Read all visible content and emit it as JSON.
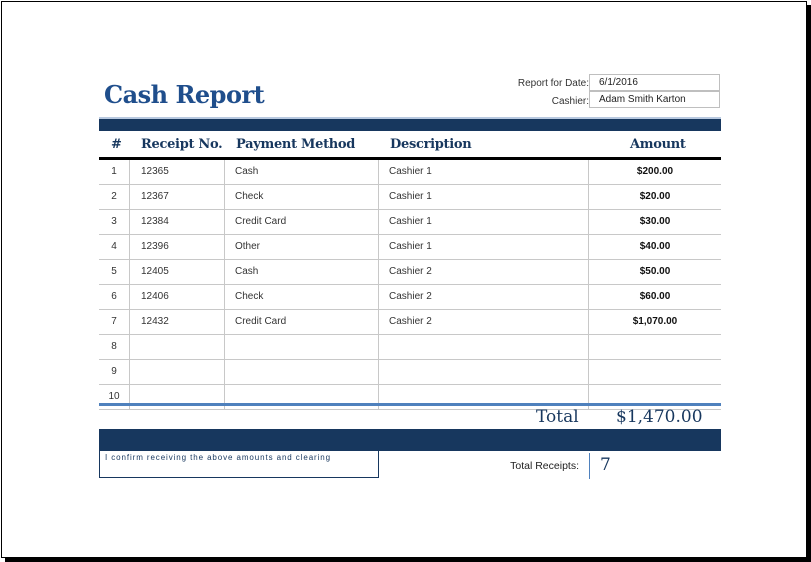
{
  "report": {
    "title": "Cash Report",
    "date_label": "Report for Date:",
    "date_value": "6/1/2016",
    "cashier_label": "Cashier:",
    "cashier_value": "Adam Smith Karton"
  },
  "table": {
    "columns": [
      "#",
      "Receipt No.",
      "Payment Method",
      "Description",
      "Amount"
    ],
    "rows": [
      {
        "num": "1",
        "receipt": "12365",
        "method": "Cash",
        "description": "Cashier 1",
        "amount": "$200.00"
      },
      {
        "num": "2",
        "receipt": "12367",
        "method": "Check",
        "description": "Cashier 1",
        "amount": "$20.00"
      },
      {
        "num": "3",
        "receipt": "12384",
        "method": "Credit Card",
        "description": "Cashier 1",
        "amount": "$30.00"
      },
      {
        "num": "4",
        "receipt": "12396",
        "method": "Other",
        "description": "Cashier 1",
        "amount": "$40.00"
      },
      {
        "num": "5",
        "receipt": "12405",
        "method": "Cash",
        "description": "Cashier 2",
        "amount": "$50.00"
      },
      {
        "num": "6",
        "receipt": "12406",
        "method": "Check",
        "description": "Cashier 2",
        "amount": "$60.00"
      },
      {
        "num": "7",
        "receipt": "12432",
        "method": "Credit Card",
        "description": "Cashier 2",
        "amount": "$1,070.00"
      },
      {
        "num": "8",
        "receipt": "",
        "method": "",
        "description": "",
        "amount": ""
      },
      {
        "num": "9",
        "receipt": "",
        "method": "",
        "description": "",
        "amount": ""
      },
      {
        "num": "10",
        "receipt": "",
        "method": "",
        "description": "",
        "amount": ""
      }
    ]
  },
  "summary": {
    "total_label": "Total",
    "total_value": "$1,470.00",
    "confirm_text": "I confirm receiving the above amounts and clearing",
    "receipts_label": "Total Receipts:",
    "receipts_value": "7"
  },
  "colors": {
    "navy": "#17375e",
    "title_blue": "#1f4e8c",
    "accent_blue": "#4f81bd"
  }
}
